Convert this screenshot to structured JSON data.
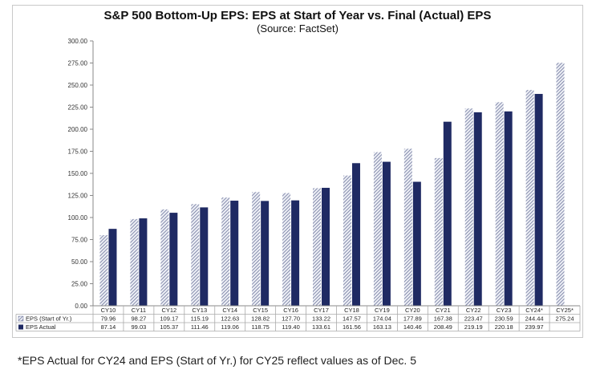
{
  "chart_data": {
    "type": "bar",
    "title": "S&P 500 Bottom-Up EPS: EPS at Start of Year vs. Final (Actual) EPS",
    "subtitle": "(Source: FactSet)",
    "categories": [
      "CY10",
      "CY11",
      "CY12",
      "CY13",
      "CY14",
      "CY15",
      "CY16",
      "CY17",
      "CY18",
      "CY19",
      "CY20",
      "CY21",
      "CY22",
      "CY23",
      "CY24*",
      "CY25*"
    ],
    "series": [
      {
        "name": "EPS (Start of Yr.)",
        "values": [
          79.96,
          98.27,
          109.17,
          115.19,
          122.63,
          128.82,
          127.7,
          133.22,
          147.57,
          174.04,
          177.89,
          167.38,
          223.47,
          230.59,
          244.44,
          275.24
        ],
        "labels": [
          "79.96",
          "98.27",
          "109.17",
          "115.19",
          "122.63",
          "128.82",
          "127.70",
          "133.22",
          "147.57",
          "174.04",
          "177.89",
          "167.38",
          "223.47",
          "230.59",
          "244.44",
          "275.24"
        ],
        "color": "#8a93b0"
      },
      {
        "name": "EPS Actual",
        "values": [
          87.14,
          99.03,
          105.37,
          111.46,
          119.06,
          118.75,
          119.4,
          133.61,
          161.56,
          163.13,
          140.46,
          208.49,
          219.19,
          220.18,
          239.97,
          null
        ],
        "labels": [
          "87.14",
          "99.03",
          "105.37",
          "111.46",
          "119.06",
          "118.75",
          "119.40",
          "133.61",
          "161.56",
          "163.13",
          "140.46",
          "208.49",
          "219.19",
          "220.18",
          "239.97",
          ""
        ],
        "color": "#1f2a63"
      }
    ],
    "ylim": [
      0,
      300
    ],
    "yticks": [
      "0.00",
      "25.00",
      "50.00",
      "75.00",
      "100.00",
      "125.00",
      "150.00",
      "175.00",
      "200.00",
      "225.00",
      "250.00",
      "275.00",
      "300.00"
    ],
    "grid": false,
    "legend": "table"
  },
  "footnote": "*EPS Actual for CY24 and EPS (Start of Yr.) for CY25 reflect values as of Dec. 5"
}
